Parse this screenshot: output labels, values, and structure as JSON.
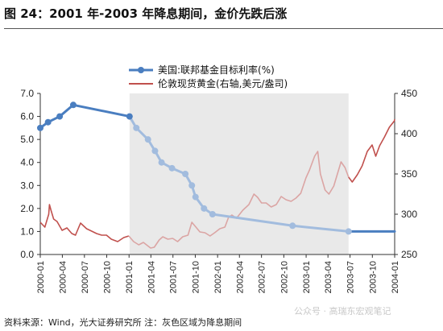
{
  "header": {
    "title": "图 24：2001 年-2003 年降息期间，金价先跌后涨"
  },
  "footer": {
    "source": "资料来源：Wind，光大证券研究所  注：灰色区域为降息期间",
    "watermark": "公众号 · 高瑞东宏观笔记"
  },
  "colors": {
    "rate": "#4a7ec0",
    "rate_light": "#a2bcde",
    "gold": "#c0504d",
    "gold_light": "#dba5a4",
    "shade": "#e9e9e9"
  },
  "chart_data": {
    "type": "line",
    "title": "",
    "x_ticks": [
      "2000-01",
      "2000-04",
      "2000-07",
      "2000-10",
      "2001-01",
      "2001-04",
      "2001-07",
      "2001-10",
      "2002-01",
      "2002-04",
      "2002-07",
      "2002-10",
      "2003-01",
      "2003-04",
      "2003-07",
      "2003-10",
      "2004-01"
    ],
    "x_range": [
      "2000-01-01",
      "2004-01-01"
    ],
    "y_left": {
      "range": [
        0,
        7
      ],
      "ticks": [
        "0.0",
        "1.0",
        "2.0",
        "3.0",
        "4.0",
        "5.0",
        "6.0",
        "7.0"
      ]
    },
    "y_right": {
      "range": [
        250,
        450
      ],
      "ticks": [
        "250",
        "300",
        "350",
        "400",
        "450"
      ]
    },
    "shaded_period": {
      "start": "2001-01-03",
      "end": "2003-06-25",
      "note": "降息期间"
    },
    "legend": {
      "placement": "top-center"
    },
    "series": [
      {
        "name": "美国:联邦基金目标利率(%)",
        "axis": "left",
        "marker": "circle",
        "points": [
          [
            "2000-01-01",
            5.5
          ],
          [
            "2000-02-02",
            5.75
          ],
          [
            "2000-03-21",
            6.0
          ],
          [
            "2000-05-16",
            6.5
          ],
          [
            "2001-01-03",
            6.0
          ],
          [
            "2001-01-31",
            5.5
          ],
          [
            "2001-03-20",
            5.0
          ],
          [
            "2001-04-18",
            4.5
          ],
          [
            "2001-05-15",
            4.0
          ],
          [
            "2001-06-27",
            3.75
          ],
          [
            "2001-08-21",
            3.5
          ],
          [
            "2001-09-17",
            3.0
          ],
          [
            "2001-10-02",
            2.5
          ],
          [
            "2001-11-06",
            2.0
          ],
          [
            "2001-12-11",
            1.75
          ],
          [
            "2002-11-06",
            1.25
          ],
          [
            "2003-06-25",
            1.0
          ],
          [
            "2004-01-01",
            1.0
          ]
        ]
      },
      {
        "name": "伦敦现货黄金(右轴,美元/盎司)",
        "axis": "right",
        "points": [
          [
            "2000-01-01",
            290
          ],
          [
            "2000-01-20",
            284
          ],
          [
            "2000-02-05",
            300
          ],
          [
            "2000-02-08",
            312
          ],
          [
            "2000-02-14",
            305
          ],
          [
            "2000-02-25",
            294
          ],
          [
            "2000-03-10",
            291
          ],
          [
            "2000-03-31",
            280
          ],
          [
            "2000-04-20",
            283
          ],
          [
            "2000-05-10",
            276
          ],
          [
            "2000-05-25",
            274
          ],
          [
            "2000-06-15",
            289
          ],
          [
            "2000-07-10",
            282
          ],
          [
            "2000-07-31",
            279
          ],
          [
            "2000-08-20",
            276
          ],
          [
            "2000-09-10",
            274
          ],
          [
            "2000-09-30",
            274
          ],
          [
            "2000-10-20",
            269
          ],
          [
            "2000-11-15",
            266
          ],
          [
            "2000-12-10",
            271
          ],
          [
            "2000-12-31",
            273
          ],
          [
            "2001-01-20",
            266
          ],
          [
            "2001-02-10",
            262
          ],
          [
            "2001-03-01",
            265
          ],
          [
            "2001-03-31",
            258
          ],
          [
            "2001-04-15",
            259
          ],
          [
            "2001-05-05",
            268
          ],
          [
            "2001-05-20",
            272
          ],
          [
            "2001-06-10",
            269
          ],
          [
            "2001-06-30",
            270
          ],
          [
            "2001-07-20",
            266
          ],
          [
            "2001-08-10",
            272
          ],
          [
            "2001-09-01",
            274
          ],
          [
            "2001-09-17",
            290
          ],
          [
            "2001-10-01",
            285
          ],
          [
            "2001-10-20",
            278
          ],
          [
            "2001-11-10",
            277
          ],
          [
            "2001-12-01",
            273
          ],
          [
            "2001-12-20",
            277
          ],
          [
            "2002-01-10",
            282
          ],
          [
            "2002-01-31",
            284
          ],
          [
            "2002-02-15",
            296
          ],
          [
            "2002-03-01",
            299
          ],
          [
            "2002-03-20",
            295
          ],
          [
            "2002-04-15",
            305
          ],
          [
            "2002-05-10",
            312
          ],
          [
            "2002-05-31",
            325
          ],
          [
            "2002-06-15",
            321
          ],
          [
            "2002-07-01",
            314
          ],
          [
            "2002-07-20",
            314
          ],
          [
            "2002-08-10",
            309
          ],
          [
            "2002-08-31",
            312
          ],
          [
            "2002-09-20",
            322
          ],
          [
            "2002-10-10",
            318
          ],
          [
            "2002-10-31",
            316
          ],
          [
            "2002-11-20",
            320
          ],
          [
            "2002-12-10",
            326
          ],
          [
            "2002-12-31",
            345
          ],
          [
            "2003-01-15",
            355
          ],
          [
            "2003-02-05",
            372
          ],
          [
            "2003-02-18",
            378
          ],
          [
            "2003-03-01",
            350
          ],
          [
            "2003-03-20",
            330
          ],
          [
            "2003-04-05",
            325
          ],
          [
            "2003-04-25",
            335
          ],
          [
            "2003-05-10",
            350
          ],
          [
            "2003-05-25",
            365
          ],
          [
            "2003-06-10",
            358
          ],
          [
            "2003-06-25",
            346
          ],
          [
            "2003-07-10",
            340
          ],
          [
            "2003-07-31",
            349
          ],
          [
            "2003-08-20",
            360
          ],
          [
            "2003-09-10",
            378
          ],
          [
            "2003-09-30",
            386
          ],
          [
            "2003-10-15",
            372
          ],
          [
            "2003-10-31",
            385
          ],
          [
            "2003-11-20",
            396
          ],
          [
            "2003-12-10",
            408
          ],
          [
            "2003-12-31",
            416
          ],
          [
            "2004-01-01",
            418
          ]
        ]
      }
    ]
  }
}
